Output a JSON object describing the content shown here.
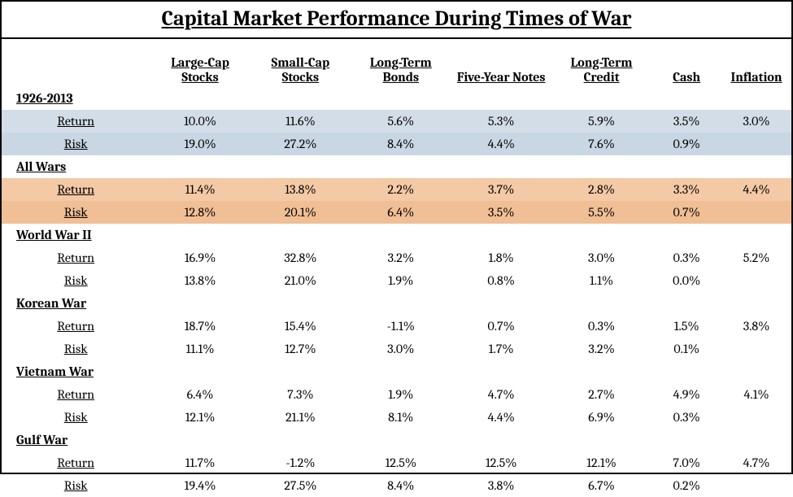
{
  "title": "Capital Market Performance During Times of War",
  "columns": [
    "Large-Cap Stocks",
    "Small-Cap Stocks",
    "Long-Term Bonds",
    "Five-Year Notes",
    "Long-Term Credit",
    "Cash",
    "Inflation"
  ],
  "sections": [
    {
      "name": "1926-2013",
      "hl": "blue",
      "return": [
        "10.0%",
        "11.6%",
        "5.6%",
        "5.3%",
        "5.9%",
        "3.5%",
        "3.0%"
      ],
      "risk": [
        "19.0%",
        "27.2%",
        "8.4%",
        "4.4%",
        "7.6%",
        "0.9%",
        ""
      ]
    },
    {
      "name": "All Wars",
      "hl": "orng",
      "return": [
        "11.4%",
        "13.8%",
        "2.2%",
        "3.7%",
        "2.8%",
        "3.3%",
        "4.4%"
      ],
      "risk": [
        "12.8%",
        "20.1%",
        "6.4%",
        "3.5%",
        "5.5%",
        "0.7%",
        ""
      ]
    },
    {
      "name": "World War II",
      "hl": null,
      "return": [
        "16.9%",
        "32.8%",
        "3.2%",
        "1.8%",
        "3.0%",
        "0.3%",
        "5.2%"
      ],
      "risk": [
        "13.8%",
        "21.0%",
        "1.9%",
        "0.8%",
        "1.1%",
        "0.0%",
        ""
      ]
    },
    {
      "name": "Korean War",
      "hl": null,
      "return": [
        "18.7%",
        "15.4%",
        "-1.1%",
        "0.7%",
        "0.3%",
        "1.5%",
        "3.8%"
      ],
      "risk": [
        "11.1%",
        "12.7%",
        "3.0%",
        "1.7%",
        "3.2%",
        "0.1%",
        ""
      ]
    },
    {
      "name": "Vietnam War",
      "hl": null,
      "return": [
        "6.4%",
        "7.3%",
        "1.9%",
        "4.7%",
        "2.7%",
        "4.9%",
        "4.1%"
      ],
      "risk": [
        "12.1%",
        "21.1%",
        "8.1%",
        "4.4%",
        "6.9%",
        "0.3%",
        ""
      ]
    },
    {
      "name": "Gulf War",
      "hl": null,
      "return": [
        "11.7%",
        "-1.2%",
        "12.5%",
        "12.5%",
        "12.1%",
        "7.0%",
        "4.7%"
      ],
      "risk": [
        "19.4%",
        "27.5%",
        "8.4%",
        "3.8%",
        "6.7%",
        "0.2%",
        ""
      ]
    }
  ],
  "metric_labels": {
    "return": "Return",
    "risk": "Risk"
  }
}
